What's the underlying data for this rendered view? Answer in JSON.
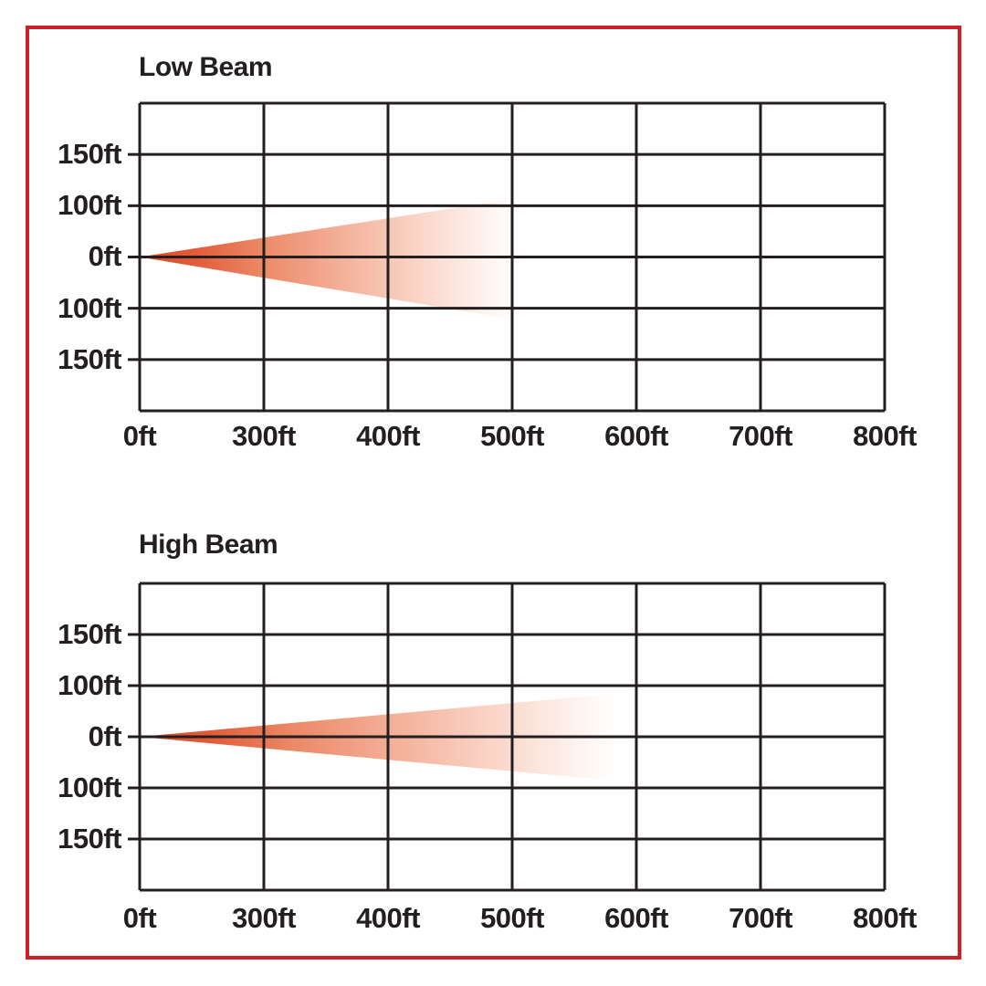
{
  "page": {
    "background": "#ffffff",
    "frame_color": "#cc2227",
    "text_color": "#231f20"
  },
  "chart_data": [
    {
      "type": "area",
      "title": "Low Beam",
      "x_ticks": [
        "0ft",
        "300ft",
        "400ft",
        "500ft",
        "600ft",
        "700ft",
        "800ft"
      ],
      "y_ticks": [
        "150ft",
        "100ft",
        "0ft",
        "100ft",
        "150ft"
      ],
      "grid": {
        "cols": 6,
        "rows": 6,
        "line_color": "#231f20"
      },
      "beam": {
        "description": "light cone starting at 0ft axis origin, fading out near 500ft, spreading to just over 100ft above and below center",
        "origin_col": 0,
        "origin_row": 3,
        "reach_cols": 3.02,
        "spread_up_rows": 1.14,
        "spread_down_rows": 1.22,
        "max_reach_label": "500ft",
        "approx_spread_at_end": "±100ft",
        "gradient_stops": [
          [
            "0",
            "#da4824"
          ],
          [
            "0.15",
            "#e25c3a"
          ],
          [
            "0.33",
            "#ec8a68"
          ],
          [
            "0.55",
            "#f4b29c"
          ],
          [
            "0.75",
            "#fad6c9"
          ],
          [
            "0.9",
            "#fdefe9"
          ],
          [
            "1",
            "#ffffff"
          ]
        ]
      }
    },
    {
      "type": "area",
      "title": "High Beam",
      "x_ticks": [
        "0ft",
        "300ft",
        "400ft",
        "500ft",
        "600ft",
        "700ft",
        "800ft"
      ],
      "y_ticks": [
        "150ft",
        "100ft",
        "0ft",
        "100ft",
        "150ft"
      ],
      "grid": {
        "cols": 6,
        "rows": 6,
        "line_color": "#231f20"
      },
      "beam": {
        "description": "narrower light cone starting at 0ft axis origin, fading out just before 600ft, spreading to about 85ft above and below center",
        "origin_col": 0,
        "origin_row": 3,
        "reach_cols": 3.82,
        "spread_up_rows": 0.84,
        "spread_down_rows": 0.86,
        "max_reach_label": "600ft",
        "approx_spread_at_end": "±85ft",
        "gradient_stops": [
          [
            "0",
            "#da4824"
          ],
          [
            "0.15",
            "#e25c3a"
          ],
          [
            "0.33",
            "#ec8a68"
          ],
          [
            "0.55",
            "#f4b29c"
          ],
          [
            "0.75",
            "#fad6c9"
          ],
          [
            "0.9",
            "#fdefe9"
          ],
          [
            "1",
            "#ffffff"
          ]
        ]
      }
    }
  ]
}
